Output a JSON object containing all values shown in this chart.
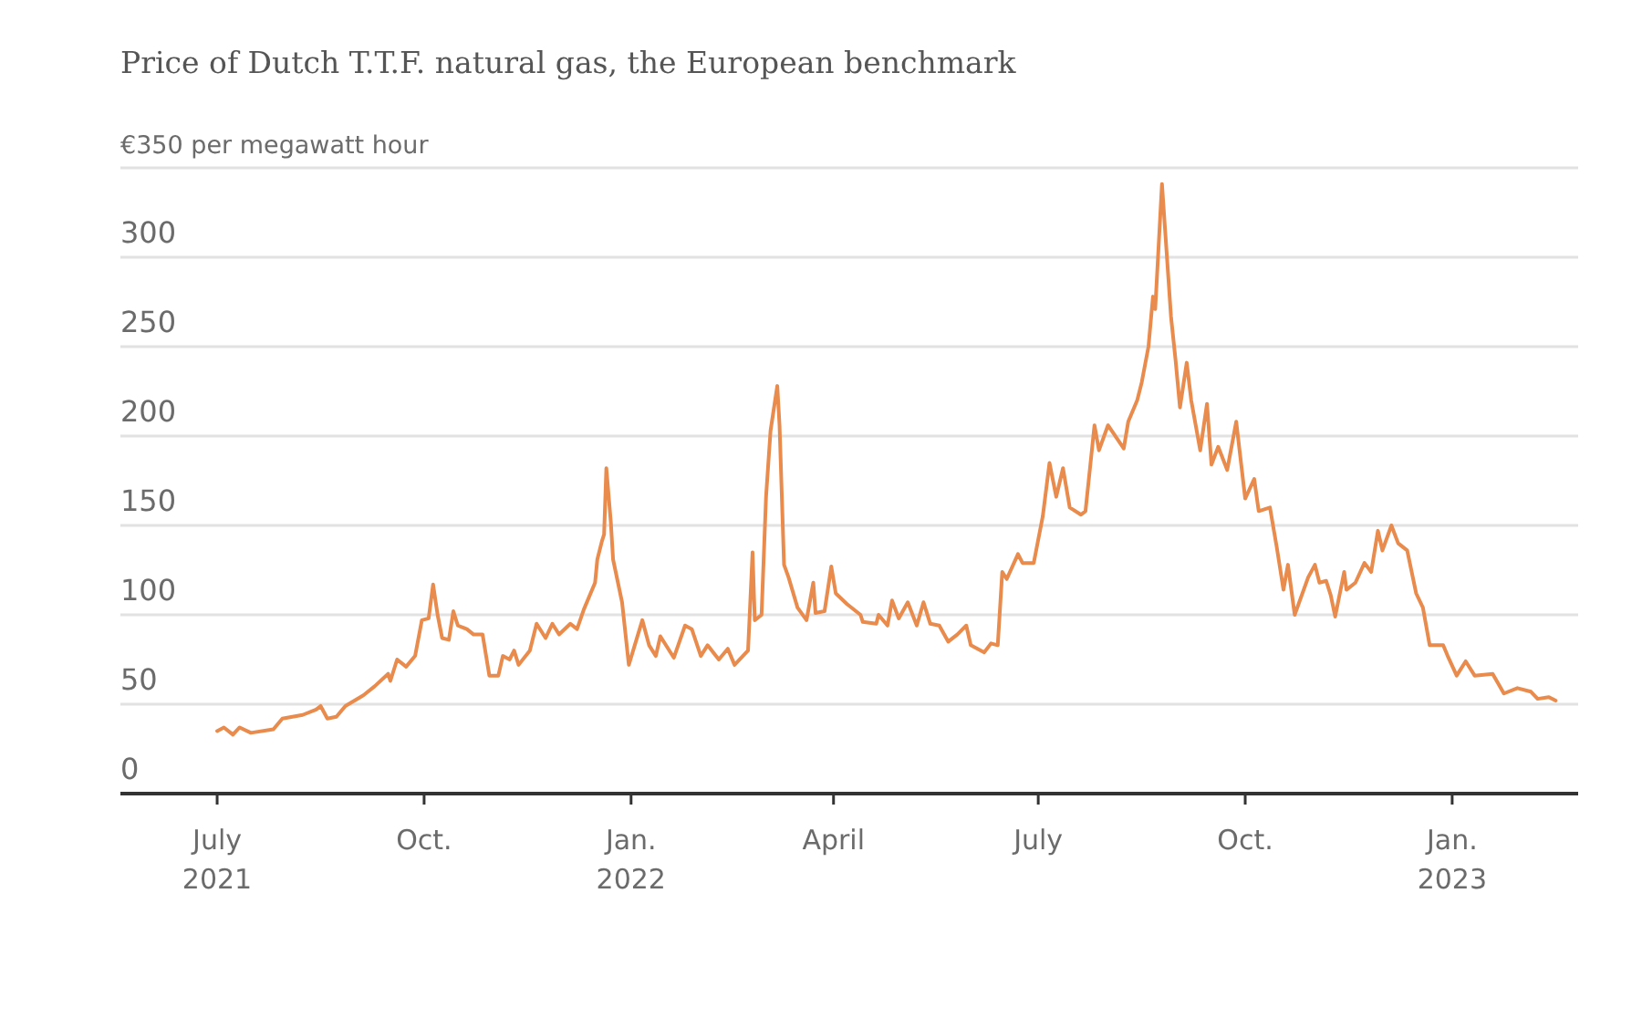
{
  "chart_data": {
    "type": "line",
    "title": "Price of Dutch T.T.F. natural gas, the European benchmark",
    "x": [
      "2021-07-01",
      "2021-07-04",
      "2021-07-08",
      "2021-07-11",
      "2021-07-16",
      "2021-07-26",
      "2021-07-30",
      "2021-08-08",
      "2021-08-14",
      "2021-08-16",
      "2021-08-19",
      "2021-08-23",
      "2021-08-27",
      "2021-09-04",
      "2021-09-09",
      "2021-09-15",
      "2021-09-16",
      "2021-09-19",
      "2021-09-23",
      "2021-09-27",
      "2021-09-30",
      "2021-10-03",
      "2021-10-05",
      "2021-10-07",
      "2021-10-09",
      "2021-10-12",
      "2021-10-14",
      "2021-10-16",
      "2021-10-20",
      "2021-10-23",
      "2021-10-27",
      "2021-10-30",
      "2021-11-03",
      "2021-11-05",
      "2021-11-08",
      "2021-11-10",
      "2021-11-12",
      "2021-11-17",
      "2021-11-20",
      "2021-11-24",
      "2021-11-27",
      "2021-11-30",
      "2021-12-05",
      "2021-12-08",
      "2021-12-11",
      "2021-12-16",
      "2021-12-17",
      "2021-12-19",
      "2021-12-20",
      "2021-12-21",
      "2021-12-23",
      "2021-12-24",
      "2021-12-28",
      "2021-12-31",
      "2022-01-06",
      "2022-01-09",
      "2022-01-12",
      "2022-01-14",
      "2022-01-20",
      "2022-01-25",
      "2022-01-28",
      "2022-02-01",
      "2022-02-04",
      "2022-02-09",
      "2022-02-13",
      "2022-02-16",
      "2022-02-22",
      "2022-02-24",
      "2022-02-25",
      "2022-02-28",
      "2022-03-02",
      "2022-03-04",
      "2022-03-07",
      "2022-03-08",
      "2022-03-10",
      "2022-03-12",
      "2022-03-16",
      "2022-03-20",
      "2022-03-23",
      "2022-03-24",
      "2022-03-28",
      "2022-03-31",
      "2022-04-02",
      "2022-04-07",
      "2022-04-13",
      "2022-04-14",
      "2022-04-20",
      "2022-04-21",
      "2022-04-25",
      "2022-04-27",
      "2022-04-30",
      "2022-05-04",
      "2022-05-08",
      "2022-05-11",
      "2022-05-14",
      "2022-05-18",
      "2022-05-22",
      "2022-05-26",
      "2022-05-30",
      "2022-06-01",
      "2022-06-07",
      "2022-06-10",
      "2022-06-13",
      "2022-06-15",
      "2022-06-17",
      "2022-06-22",
      "2022-06-24",
      "2022-06-29",
      "2022-07-03",
      "2022-07-06",
      "2022-07-09",
      "2022-07-12",
      "2022-07-15",
      "2022-07-20",
      "2022-07-22",
      "2022-07-26",
      "2022-07-28",
      "2022-08-01",
      "2022-08-08",
      "2022-08-10",
      "2022-08-14",
      "2022-08-16",
      "2022-08-19",
      "2022-08-21",
      "2022-08-22",
      "2022-08-25",
      "2022-08-29",
      "2022-08-31",
      "2022-09-02",
      "2022-09-05",
      "2022-09-07",
      "2022-09-11",
      "2022-09-14",
      "2022-09-16",
      "2022-09-19",
      "2022-09-23",
      "2022-09-27",
      "2022-10-01",
      "2022-10-05",
      "2022-10-07",
      "2022-10-12",
      "2022-10-15",
      "2022-10-18",
      "2022-10-20",
      "2022-10-23",
      "2022-10-29",
      "2022-11-01",
      "2022-11-03",
      "2022-11-06",
      "2022-11-08",
      "2022-11-10",
      "2022-11-14",
      "2022-11-15",
      "2022-11-19",
      "2022-11-23",
      "2022-11-26",
      "2022-11-29",
      "2022-12-01",
      "2022-12-05",
      "2022-12-08",
      "2022-12-12",
      "2022-12-16",
      "2022-12-19",
      "2022-12-22",
      "2022-12-28",
      "2022-12-30",
      "2023-01-03",
      "2023-01-07",
      "2023-01-11",
      "2023-01-19",
      "2023-01-24",
      "2023-01-30",
      "2023-02-05",
      "2023-02-08",
      "2023-02-13",
      "2023-02-16"
    ],
    "series": [
      {
        "color": "#e88b4d",
        "values": [
          35,
          37,
          33,
          37,
          34,
          36,
          42,
          44,
          47,
          49,
          42,
          43,
          49,
          55,
          60,
          67,
          63,
          75,
          71,
          77,
          97,
          98,
          117,
          100,
          87,
          86,
          102,
          94,
          92,
          89,
          89,
          66,
          66,
          77,
          75,
          80,
          72,
          80,
          95,
          87,
          95,
          89,
          95,
          92,
          103,
          118,
          131,
          141,
          145,
          182,
          152,
          131,
          107,
          72,
          97,
          83,
          77,
          88,
          76,
          94,
          92,
          77,
          83,
          75,
          81,
          72,
          80,
          135,
          97,
          100,
          166,
          203,
          228,
          206,
          128,
          121,
          104,
          97,
          118,
          101,
          102,
          127,
          112,
          106,
          100,
          96,
          95,
          100,
          94,
          108,
          98,
          107,
          94,
          107,
          95,
          94,
          85,
          89,
          94,
          83,
          79,
          84,
          83,
          124,
          120,
          134,
          129,
          129,
          155,
          185,
          166,
          182,
          160,
          156,
          158,
          206,
          192,
          206,
          193,
          208,
          220,
          230,
          250,
          278,
          271,
          341,
          267,
          243,
          216,
          241,
          220,
          192,
          218,
          184,
          194,
          181,
          208,
          165,
          176,
          158,
          160,
          138,
          114,
          128,
          100,
          121,
          128,
          118,
          119,
          111,
          99,
          124,
          114,
          118,
          129,
          124,
          147,
          136,
          150,
          140,
          136,
          112,
          104,
          83,
          83,
          77,
          66,
          74,
          66,
          67,
          56,
          59,
          57,
          53,
          54,
          52
        ]
      }
    ],
    "xlim": [
      "2021-05-19",
      "2023-02-26"
    ],
    "xticks": [
      {
        "value": "2021-07-01",
        "label": "July 2021"
      },
      {
        "value": "2021-10-01",
        "label": "Oct."
      },
      {
        "value": "2022-01-01",
        "label": "Jan. 2022"
      },
      {
        "value": "2022-04-01",
        "label": "April"
      },
      {
        "value": "2022-07-01",
        "label": "July"
      },
      {
        "value": "2022-10-01",
        "label": "Oct."
      },
      {
        "value": "2023-01-01",
        "label": "Jan. 2023"
      }
    ],
    "ylim": [
      0,
      350
    ],
    "yticks": [
      0,
      50,
      100,
      150,
      200,
      250,
      300,
      {
        "value": 350,
        "label": "€350 per megawatt hour"
      }
    ],
    "grid": "y",
    "marker": "none"
  }
}
